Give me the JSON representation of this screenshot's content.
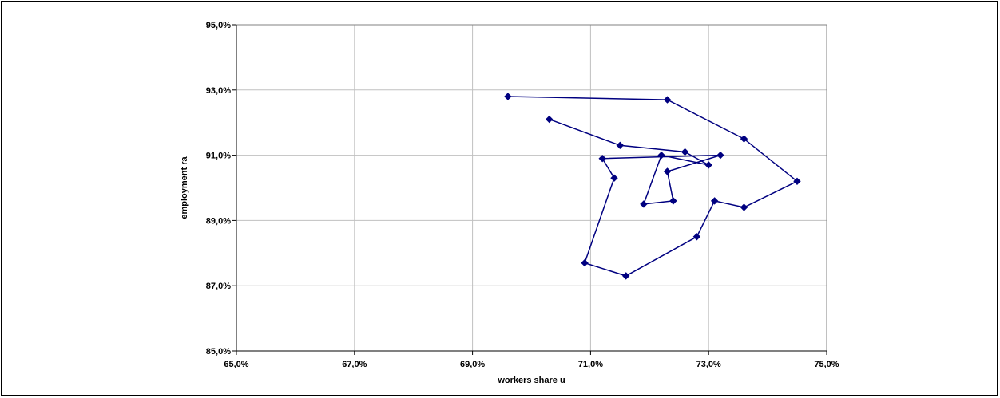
{
  "chart_data": {
    "type": "scatter",
    "xlabel": "workers share u",
    "ylabel": "employment ra",
    "xlim": [
      0.65,
      0.75
    ],
    "ylim": [
      0.85,
      0.95
    ],
    "x_ticks": [
      0.65,
      0.67,
      0.69,
      0.71,
      0.73,
      0.75
    ],
    "y_ticks": [
      0.85,
      0.87,
      0.89,
      0.91,
      0.93,
      0.95
    ],
    "x_tick_labels": [
      "65,0%",
      "67,0%",
      "69,0%",
      "71,0%",
      "73,0%",
      "75,0%"
    ],
    "y_tick_labels": [
      "85,0%",
      "87,0%",
      "89,0%",
      "91,0%",
      "93,0%",
      "95,0%"
    ],
    "grid": true,
    "connected": true,
    "marker": "diamond",
    "series_color": "#000080",
    "series": [
      {
        "x": [
          0.696,
          0.723,
          0.736,
          0.745,
          0.736,
          0.731,
          0.728,
          0.716,
          0.709,
          0.714,
          0.712,
          0.732,
          0.723,
          0.724,
          0.719,
          0.722,
          0.73,
          0.726,
          0.715,
          0.703
        ],
        "y": [
          0.928,
          0.927,
          0.915,
          0.902,
          0.894,
          0.896,
          0.885,
          0.873,
          0.877,
          0.903,
          0.909,
          0.91,
          0.905,
          0.896,
          0.895,
          0.91,
          0.907,
          0.911,
          0.913,
          0.921
        ]
      }
    ]
  }
}
